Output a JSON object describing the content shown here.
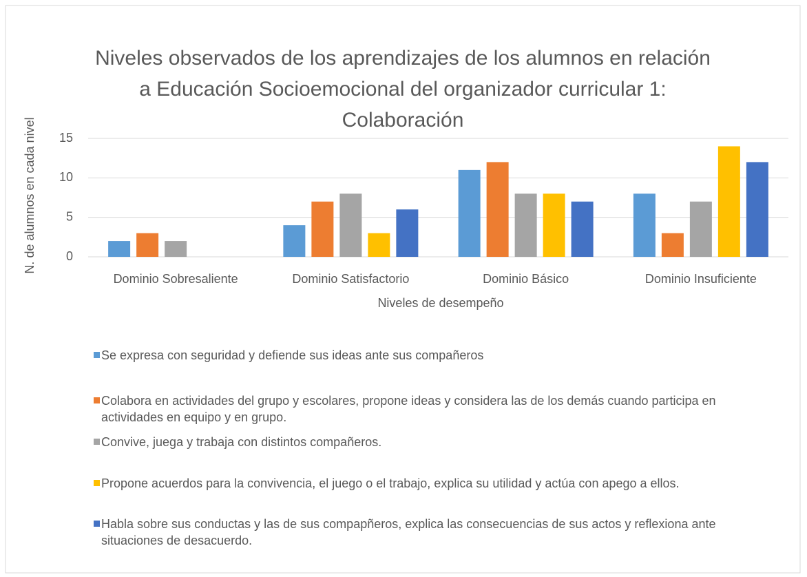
{
  "chart_data": {
    "type": "bar",
    "title": "Niveles observados de los aprendizajes de los alumnos en relación a Educación Socioemocional del organizador curricular 1: Colaboración",
    "x_label": "Niveles de desempeño",
    "y_label": "N. de alumnos en cada nivel",
    "categories": [
      "Dominio Sobresaliente",
      "Dominio Satisfactorio",
      "Dominio Básico",
      "Dominio Insuficiente"
    ],
    "series": [
      {
        "name": "Se expresa con seguridad y defiende sus ideas ante sus compañeros",
        "color": "#5b9bd5",
        "values": [
          2,
          4,
          11,
          8
        ]
      },
      {
        "name": "Colabora en actividades del grupo y escolares, propone ideas y considera las de los demás cuando participa en actividades en equipo y en grupo.",
        "color": "#ed7d31",
        "values": [
          3,
          7,
          12,
          3
        ]
      },
      {
        "name": "Convive, juega y trabaja con distintos compañeros.",
        "color": "#a5a5a5",
        "values": [
          2,
          8,
          8,
          7
        ]
      },
      {
        "name": "Propone acuerdos para la convivencia, el juego o el trabajo, explica su utilidad y actúa con apego a ellos.",
        "color": "#ffc000",
        "values": [
          0,
          3,
          8,
          14
        ]
      },
      {
        "name": "Habla sobre sus conductas y las de sus compapñeros, explica las consecuencias de sus actos y reflexiona ante situaciones de desacuerdo.",
        "color": "#4472c4",
        "values": [
          0,
          6,
          7,
          12
        ]
      }
    ],
    "ylim": [
      0,
      15
    ],
    "yticks": [
      0,
      5,
      10,
      15
    ],
    "grid": true,
    "legend": "bottom"
  }
}
